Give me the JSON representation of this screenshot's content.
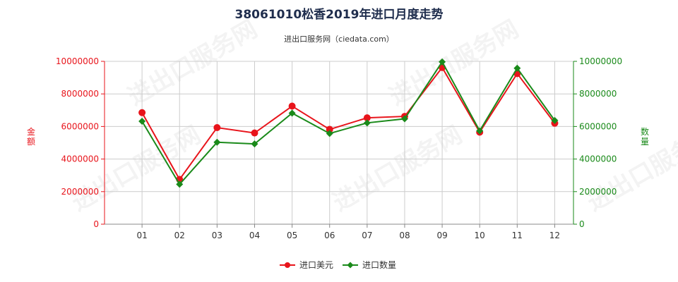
{
  "title": "38061010松香2019年进口月度走势",
  "subtitle": "进出口服务网（ciedata.com）",
  "watermark": "进出口服务网",
  "colors": {
    "left_axis": "#e8141b",
    "right_axis": "#1a8a1a",
    "series_value": "#e8141b",
    "series_quantity": "#1a8a1a",
    "grid": "#cccccc"
  },
  "chart_data": {
    "type": "line",
    "categories": [
      "01",
      "02",
      "03",
      "04",
      "05",
      "06",
      "07",
      "08",
      "09",
      "10",
      "11",
      "12"
    ],
    "left_axis": {
      "label": "金额",
      "ylim": [
        0,
        10000000
      ],
      "ticks": [
        "0",
        "2000000",
        "4000000",
        "6000000",
        "8000000",
        "10000000"
      ]
    },
    "right_axis": {
      "label": "数量",
      "ylim": [
        0,
        10000000
      ],
      "ticks": [
        "0",
        "2000000",
        "4000000",
        "6000000",
        "8000000",
        "10000000"
      ]
    },
    "grid": true,
    "legend": "bottom-center",
    "series": [
      {
        "name": "进口美元",
        "axis": "left",
        "marker": "circle",
        "values": [
          6850000,
          2750000,
          5930000,
          5600000,
          7250000,
          5820000,
          6530000,
          6620000,
          9620000,
          5650000,
          9250000,
          6200000
        ]
      },
      {
        "name": "进口数量",
        "axis": "right",
        "marker": "diamond",
        "values": [
          6320000,
          2450000,
          5030000,
          4930000,
          6820000,
          5570000,
          6220000,
          6470000,
          9970000,
          5730000,
          9580000,
          6370000
        ]
      }
    ]
  }
}
